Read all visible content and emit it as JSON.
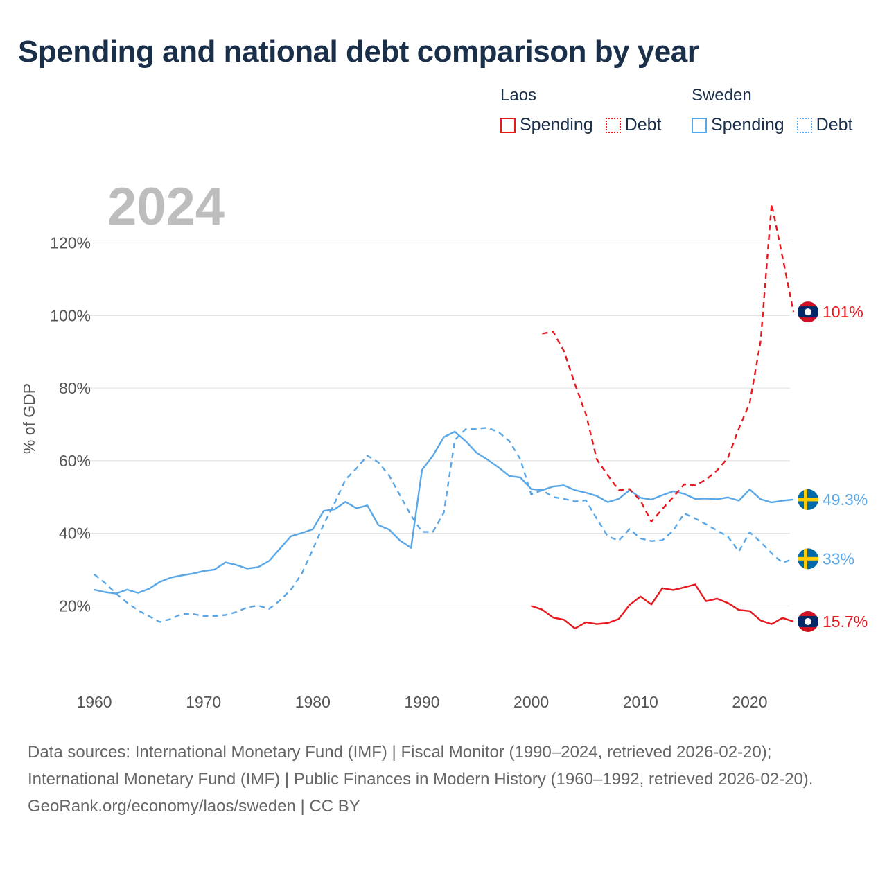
{
  "title": "Spending and national debt comparison by year",
  "legend": {
    "groups": [
      {
        "name": "Laos",
        "spending_label": "Spending",
        "debt_label": "Debt",
        "color": "#e8181f"
      },
      {
        "name": "Sweden",
        "spending_label": "Spending",
        "debt_label": "Debt",
        "color": "#5aa7e8"
      }
    ]
  },
  "footer": {
    "sources": "Data sources: International Monetary Fund (IMF) | Fiscal Monitor (1990–2024, retrieved 2026-02-20); International Monetary Fund (IMF) | Public Finances in Modern History (1960–1992, retrieved 2026-02-20).",
    "credit": "GeoRank.org/economy/laos/sweden | CC BY"
  },
  "chart_data": {
    "type": "line",
    "year_watermark": "2024",
    "ylabel": "% of GDP",
    "xlabel": "",
    "xlim": [
      1960,
      2024
    ],
    "ylim": [
      5,
      135
    ],
    "x_ticks": [
      "1960",
      "1970",
      "1980",
      "1990",
      "2000",
      "2010",
      "2020"
    ],
    "y_ticks": [
      "20%",
      "40%",
      "60%",
      "80%",
      "100%",
      "120%"
    ],
    "y_tick_values": [
      20,
      40,
      60,
      80,
      100,
      120
    ],
    "grid": true,
    "series": [
      {
        "name": "Sweden Spending",
        "country": "Sweden",
        "metric": "Spending",
        "color": "#5aa7e8",
        "dash": "solid",
        "end_label": "49.3%",
        "x": [
          1960,
          1961,
          1962,
          1963,
          1964,
          1965,
          1966,
          1967,
          1968,
          1969,
          1970,
          1971,
          1972,
          1973,
          1974,
          1975,
          1976,
          1977,
          1978,
          1979,
          1980,
          1981,
          1982,
          1983,
          1984,
          1985,
          1986,
          1987,
          1988,
          1989,
          1990,
          1991,
          1992,
          1993,
          1994,
          1995,
          1996,
          1997,
          1998,
          1999,
          2000,
          2001,
          2002,
          2003,
          2004,
          2005,
          2006,
          2007,
          2008,
          2009,
          2010,
          2011,
          2012,
          2013,
          2014,
          2015,
          2016,
          2017,
          2018,
          2019,
          2020,
          2021,
          2022,
          2023,
          2024
        ],
        "values": [
          24.5,
          23.8,
          23.4,
          24.5,
          23.6,
          24.7,
          26.6,
          27.8,
          28.4,
          28.9,
          29.6,
          30,
          32,
          31.3,
          30.3,
          30.7,
          32.4,
          35.8,
          39.2,
          40.1,
          41.1,
          46.2,
          46.6,
          48.7,
          46.9,
          47.7,
          42.3,
          41,
          38,
          36,
          57.5,
          61.4,
          66.5,
          68,
          65.4,
          62.2,
          60.3,
          58.2,
          55.8,
          55.4,
          52.2,
          51.9,
          52.9,
          53.2,
          51.9,
          51.2,
          50.3,
          48.6,
          49.5,
          51.9,
          49.8,
          49.3,
          50.5,
          51.6,
          50.9,
          49.5,
          49.6,
          49.4,
          49.9,
          49,
          52.1,
          49.4,
          48.5,
          49,
          49.3
        ]
      },
      {
        "name": "Sweden Debt",
        "country": "Sweden",
        "metric": "Debt",
        "color": "#5aa7e8",
        "dash": "dashed",
        "end_label": "33%",
        "x": [
          1960,
          1961,
          1962,
          1963,
          1964,
          1965,
          1966,
          1967,
          1968,
          1969,
          1970,
          1971,
          1972,
          1973,
          1974,
          1975,
          1976,
          1977,
          1978,
          1979,
          1980,
          1981,
          1982,
          1983,
          1984,
          1985,
          1986,
          1987,
          1988,
          1989,
          1990,
          1991,
          1992,
          1993,
          1994,
          1995,
          1996,
          1997,
          1998,
          1999,
          2000,
          2001,
          2002,
          2003,
          2004,
          2005,
          2006,
          2007,
          2008,
          2009,
          2010,
          2011,
          2012,
          2013,
          2014,
          2015,
          2016,
          2017,
          2018,
          2019,
          2020,
          2021,
          2022,
          2023,
          2024
        ],
        "values": [
          28.7,
          26.3,
          23.4,
          20.9,
          18.8,
          17.2,
          15.6,
          16.4,
          17.8,
          17.8,
          17.2,
          17.2,
          17.5,
          18.3,
          19.6,
          20.1,
          19.2,
          21.5,
          24.5,
          28.9,
          35.5,
          42.5,
          48.3,
          54.8,
          57.9,
          61.4,
          59.6,
          55.9,
          50.4,
          44.9,
          40.4,
          40.4,
          45.7,
          65.7,
          68.7,
          68.8,
          69.1,
          67.9,
          65.4,
          60.4,
          50.7,
          51.9,
          50,
          49.5,
          48.8,
          49.1,
          44,
          39.2,
          38,
          41.2,
          38.6,
          37.9,
          38.1,
          40.8,
          45.5,
          44.1,
          42.5,
          40.8,
          39.1,
          35,
          40.3,
          37.6,
          34.5,
          31.9,
          33
        ]
      },
      {
        "name": "Laos Debt",
        "country": "Laos",
        "metric": "Debt",
        "color": "#e8181f",
        "dash": "dashed",
        "end_label": "101%",
        "x": [
          2001,
          2002,
          2003,
          2004,
          2005,
          2006,
          2007,
          2008,
          2009,
          2010,
          2011,
          2012,
          2013,
          2014,
          2015,
          2016,
          2017,
          2018,
          2019,
          2020,
          2021,
          2022,
          2023,
          2024
        ],
        "values": [
          95,
          95.6,
          90.2,
          81.1,
          72.8,
          60.4,
          56,
          51.9,
          52.2,
          49,
          43.2,
          46.7,
          50,
          53.5,
          53.2,
          54.8,
          57.3,
          60.8,
          68.9,
          75.9,
          93,
          130.8,
          116.1,
          101
        ]
      },
      {
        "name": "Laos Spending",
        "country": "Laos",
        "metric": "Spending",
        "color": "#e8181f",
        "dash": "solid",
        "end_label": "15.7%",
        "x": [
          2000,
          2001,
          2002,
          2003,
          2004,
          2005,
          2006,
          2007,
          2008,
          2009,
          2010,
          2011,
          2012,
          2013,
          2014,
          2015,
          2016,
          2017,
          2018,
          2019,
          2020,
          2021,
          2022,
          2023,
          2024
        ],
        "values": [
          20,
          19,
          16.8,
          16.2,
          13.8,
          15.5,
          15,
          15.3,
          16.4,
          20.3,
          22.6,
          20.4,
          24.9,
          24.4,
          25.1,
          25.9,
          21.3,
          22,
          20.8,
          18.9,
          18.6,
          16,
          15,
          16.7,
          15.7
        ]
      }
    ]
  }
}
